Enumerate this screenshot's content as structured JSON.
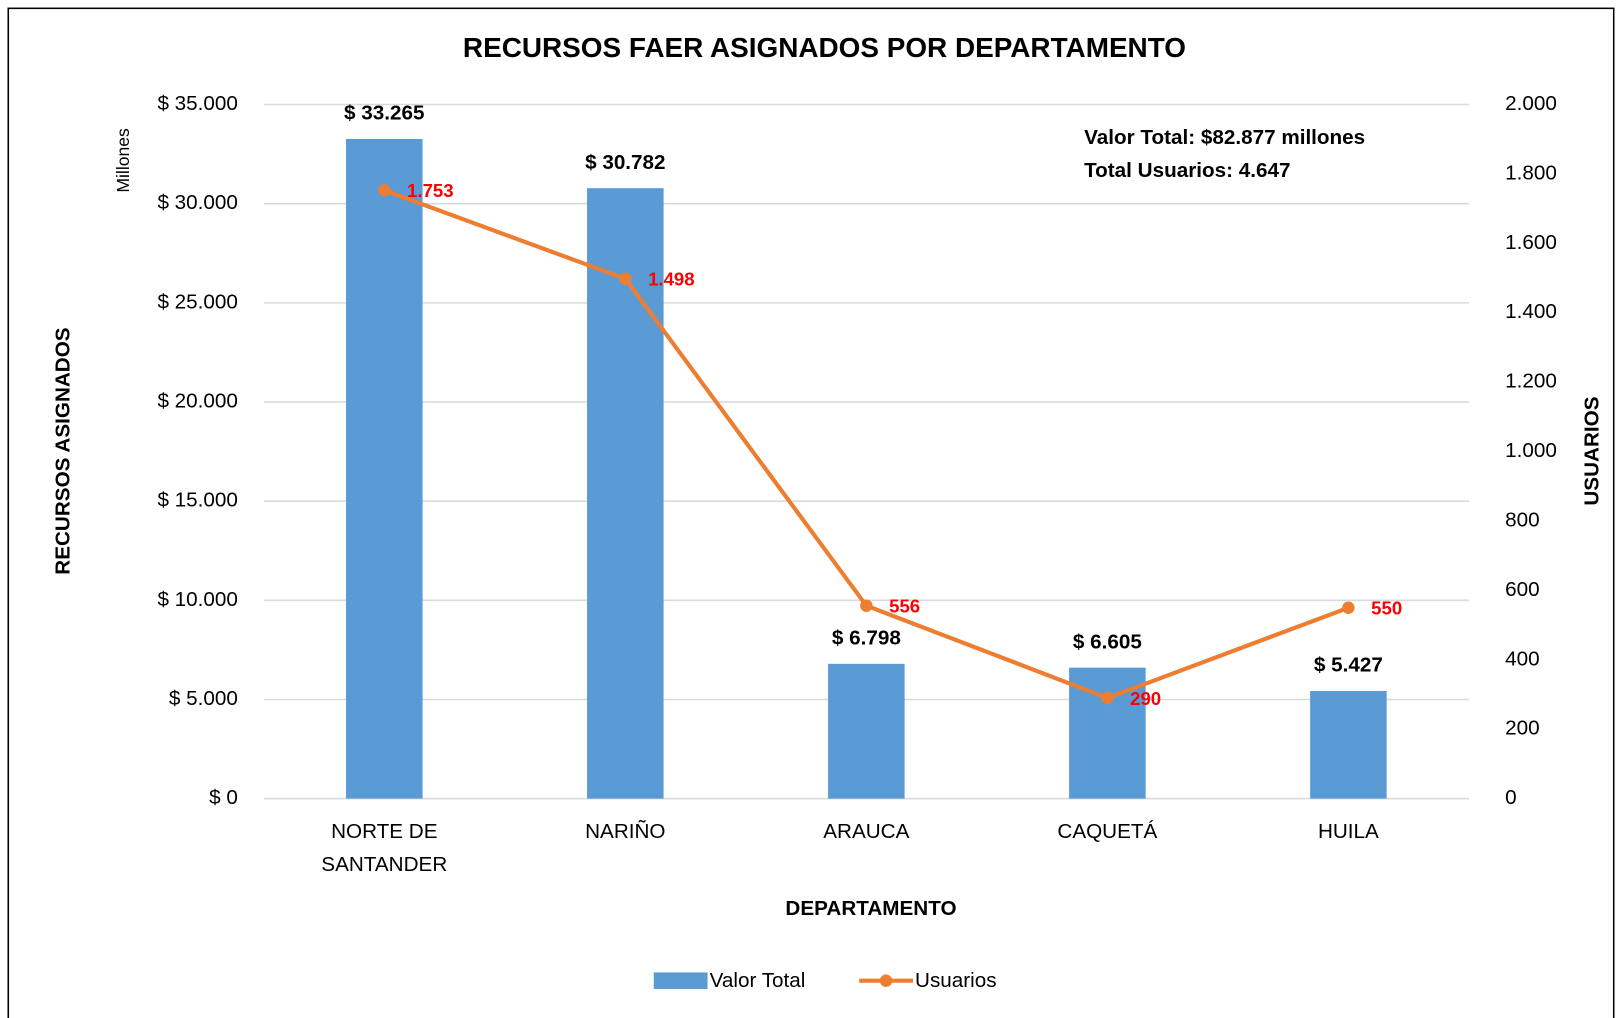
{
  "chart_data": {
    "type": "combo",
    "title": "RECURSOS FAER ASIGNADOS POR DEPARTAMENTO",
    "x_label": "DEPARTAMENTO",
    "y_label": "RECURSOS ASIGNADOS",
    "y_unit": "Millones",
    "y2_label": "USUARIOS",
    "annotations": [
      "Valor Total: $82.877 millones",
      "Total Usuarios: 4.647"
    ],
    "categories": [
      "NORTE DE SANTANDER",
      "NARIÑO",
      "ARAUCA",
      "CAQUETÁ",
      "HUILA"
    ],
    "series": [
      {
        "name": "Valor Total",
        "type": "bar",
        "color": "#5b9bd5",
        "values": [
          33265,
          30782,
          6798,
          6605,
          5427
        ],
        "value_labels": [
          "$ 33.265",
          "$ 30.782",
          "$ 6.798",
          "$ 6.605",
          "$ 5.427"
        ]
      },
      {
        "name": "Usuarios",
        "type": "line",
        "axis": "y2",
        "color": "#ed7d31",
        "values": [
          1753,
          1498,
          556,
          290,
          550
        ],
        "value_labels": [
          "1.753",
          "1.498",
          "556",
          "290",
          "550"
        ]
      }
    ],
    "ylim": [
      0,
      35000
    ],
    "yticks": [
      {
        "value": 0,
        "label": "$ 0"
      },
      {
        "value": 5000,
        "label": "$ 5.000"
      },
      {
        "value": 10000,
        "label": "$ 10.000"
      },
      {
        "value": 15000,
        "label": "$ 15.000"
      },
      {
        "value": 20000,
        "label": "$ 20.000"
      },
      {
        "value": 25000,
        "label": "$ 25.000"
      },
      {
        "value": 30000,
        "label": "$ 30.000"
      },
      {
        "value": 35000,
        "label": "$ 35.000"
      }
    ],
    "y2lim": [
      0,
      2000
    ],
    "y2ticks": [
      0,
      200,
      400,
      600,
      800,
      {
        "value": 1000,
        "label": "1.000"
      },
      {
        "value": 1200,
        "label": "1.200"
      },
      {
        "value": 1400,
        "label": "1.400"
      },
      {
        "value": 1600,
        "label": "1.600"
      },
      {
        "value": 1800,
        "label": "1.800"
      },
      {
        "value": 2000,
        "label": "2.000"
      }
    ],
    "grid": true,
    "legend": "bottom",
    "value_label_color": "#ff0000"
  }
}
